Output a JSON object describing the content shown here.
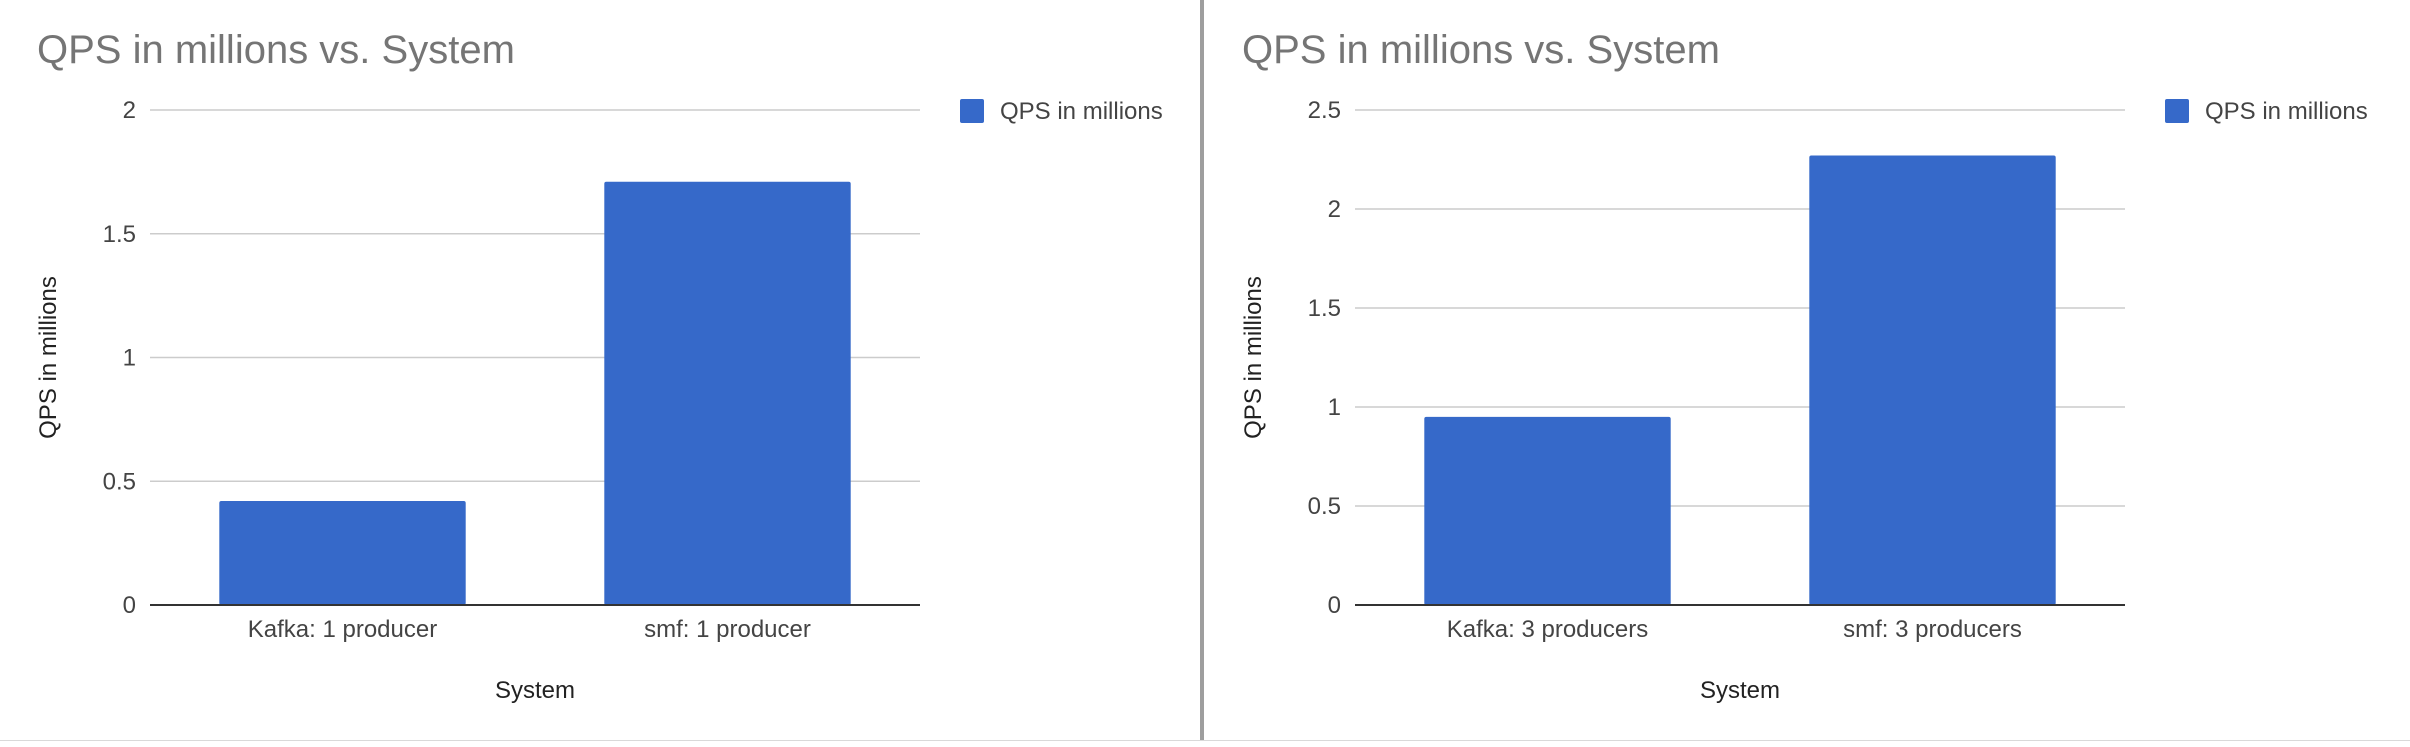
{
  "colors": {
    "bar": "#3669C9",
    "grid": "#cccccc",
    "axis": "#333333",
    "title": "#757575",
    "text": "#444444"
  },
  "chart_data": [
    {
      "type": "bar",
      "title": "QPS in millions vs. System",
      "xlabel": "System",
      "ylabel": "QPS in millions",
      "categories": [
        "Kafka: 1 producer",
        "smf: 1 producer"
      ],
      "series": [
        {
          "name": "QPS in millions",
          "values": [
            0.42,
            1.71
          ]
        }
      ],
      "ylim": [
        0,
        2
      ],
      "yticks": [
        "0",
        "0.5",
        "1",
        "1.5",
        "2"
      ],
      "legend": "right",
      "grid": true
    },
    {
      "type": "bar",
      "title": "QPS in millions vs. System",
      "xlabel": "System",
      "ylabel": "QPS in millions",
      "categories": [
        "Kafka: 3 producers",
        "smf: 3 producers"
      ],
      "series": [
        {
          "name": "QPS in millions",
          "values": [
            0.95,
            2.27
          ]
        }
      ],
      "ylim": [
        0,
        2.5
      ],
      "yticks": [
        "0",
        "0.5",
        "1",
        "1.5",
        "2",
        "2.5"
      ],
      "legend": "right",
      "grid": true
    }
  ]
}
